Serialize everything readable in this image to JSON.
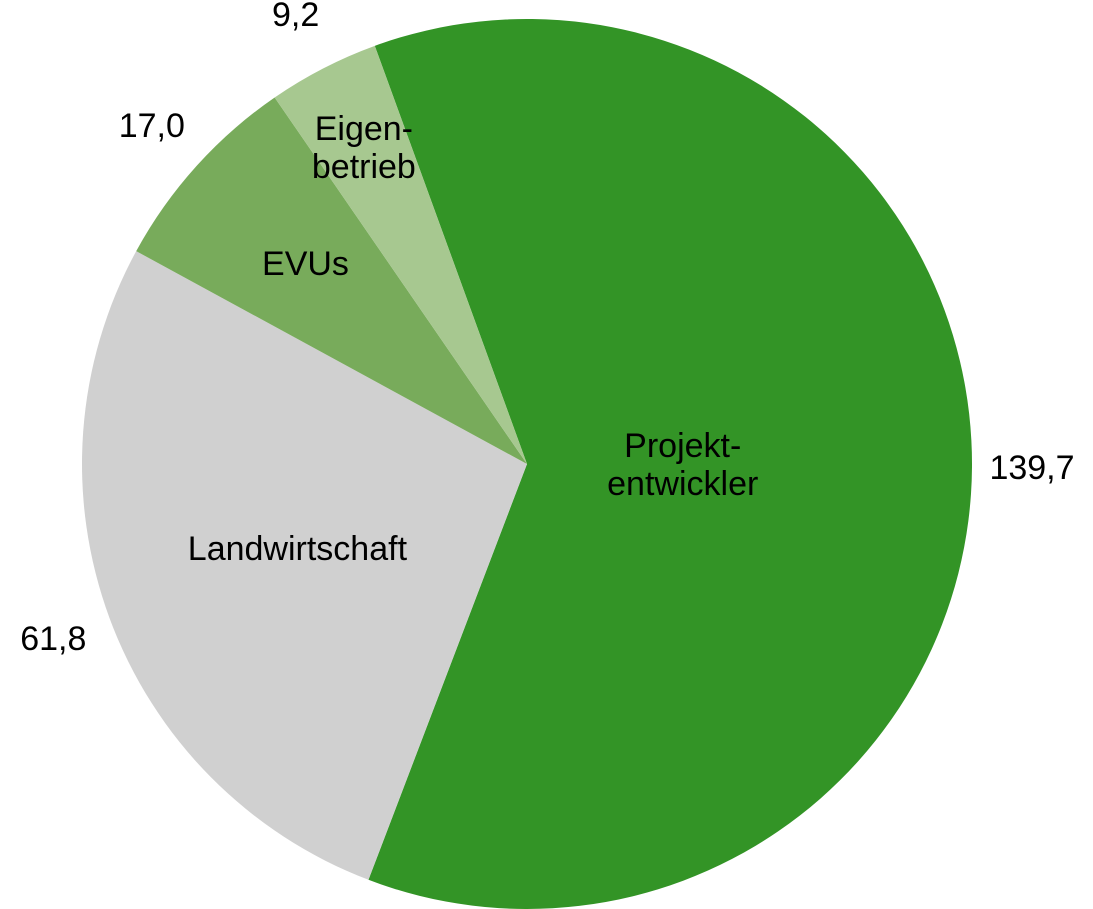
{
  "chart_data": {
    "type": "pie",
    "categories": [
      "Projekt-\nentwickler",
      "Landwirtschaft",
      "EVUs",
      "Eigen-\nbetrieb"
    ],
    "values": [
      139.7,
      61.8,
      17.0,
      9.2
    ],
    "value_labels": [
      "139,7",
      "61,8",
      "17,0",
      "9,2"
    ],
    "colors": [
      "#339426",
      "#d0d0d0",
      "#78ab5b",
      "#a7c890"
    ]
  }
}
